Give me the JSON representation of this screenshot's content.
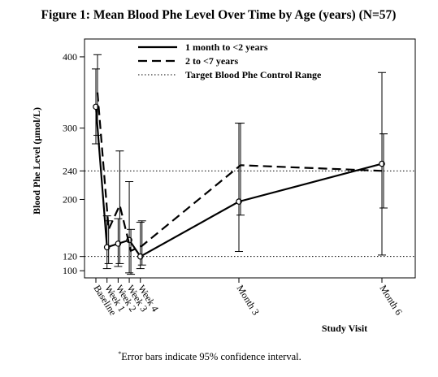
{
  "chart_data": {
    "type": "line",
    "title": "Figure 1: Mean Blood Phe Level Over Time by Age (years) (N=57)",
    "xlabel": "Study Visit",
    "ylabel": "Blood Phe Level (µmol/L)",
    "ylim": [
      90,
      425
    ],
    "yticks": [
      100,
      120,
      200,
      240,
      300,
      400
    ],
    "categories": [
      "Baseline",
      "Week 1",
      "Week 2",
      "Week 3",
      "Week 4",
      "Month 3",
      "Month 6"
    ],
    "x_days": [
      0,
      7,
      14,
      21,
      28,
      90,
      180
    ],
    "series": [
      {
        "name": "1 month to <2 years",
        "line": "solid",
        "marker": "circle",
        "values": [
          330,
          133,
          138,
          143,
          120,
          197,
          250
        ],
        "ci_low": [
          278,
          103,
          106,
          97,
          103,
          127,
          122
        ],
        "ci_high": [
          383,
          177,
          173,
          225,
          168,
          307,
          378
        ]
      },
      {
        "name": "2 to <7 years",
        "line": "dashed",
        "marker": "none",
        "values": [
          350,
          158,
          192,
          128,
          135,
          248,
          240
        ],
        "ci_low": [
          290,
          110,
          110,
          95,
          108,
          178,
          188
        ],
        "ci_high": [
          403,
          170,
          268,
          158,
          170,
          307,
          292
        ]
      }
    ],
    "reference_lines": [
      {
        "name": "Target Blood Phe Control Range",
        "y": 120,
        "style": "dotted"
      },
      {
        "name": "Target Blood Phe Control Range",
        "y": 240,
        "style": "dotted"
      }
    ],
    "legend": {
      "position": "top",
      "entries": [
        "1 month to <2 years",
        "2 to <7 years",
        "Target Blood Phe Control Range"
      ]
    },
    "footnote_mark": "*",
    "footnote": "Error bars indicate 95% confidence interval.",
    "grid": false
  }
}
